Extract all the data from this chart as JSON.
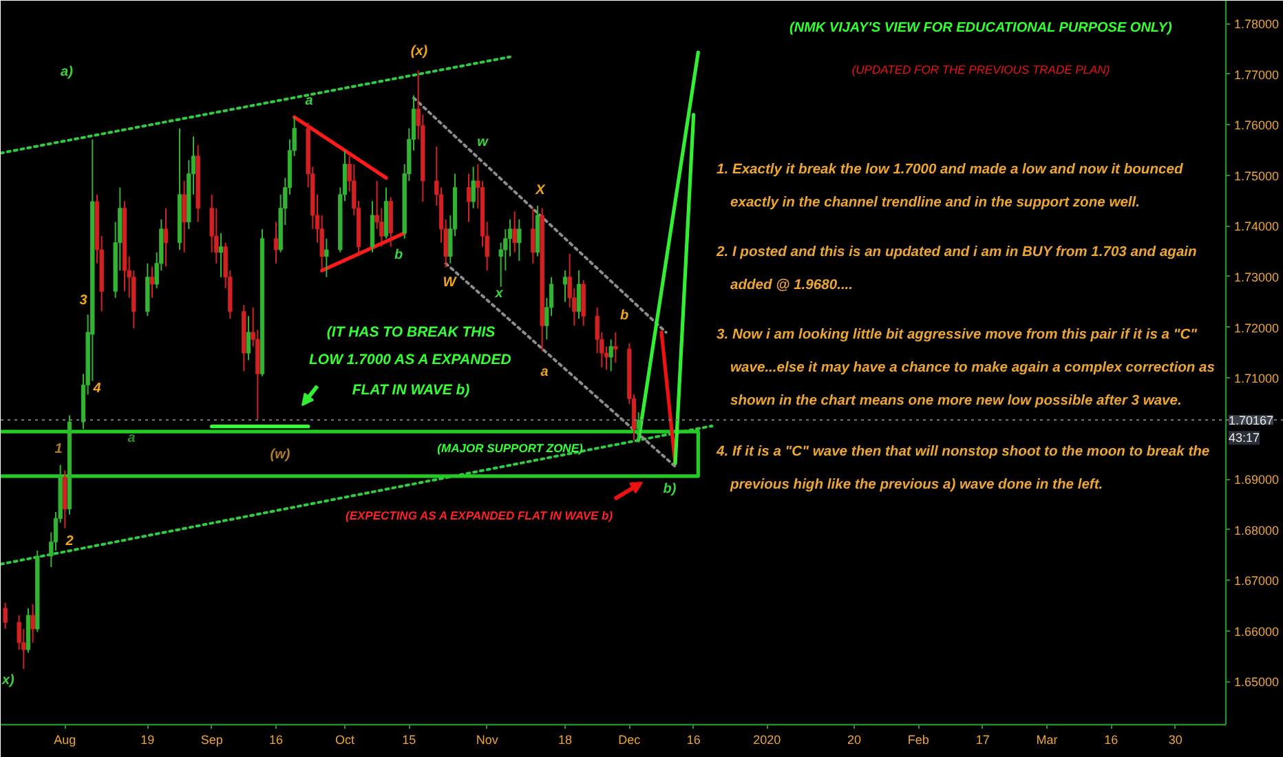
{
  "chart_data": {
    "type": "candlestick",
    "title": "(NMK VIJAY'S VIEW FOR EDUCATIONAL PURPOSE ONLY)",
    "subtitle": "(UPDATED FOR THE PREVIOUS TRADE PLAN)",
    "xlim": [
      "2019-07-18",
      "2020-04-10"
    ],
    "ylim": [
      1.6415,
      1.7845
    ],
    "xticks": [
      {
        "value": "2019-08-01",
        "label": "Aug"
      },
      {
        "value": "2019-08-19",
        "label": "19"
      },
      {
        "value": "2019-09-02",
        "label": "Sep"
      },
      {
        "value": "2019-09-16",
        "label": "16"
      },
      {
        "value": "2019-10-01",
        "label": "Oct"
      },
      {
        "value": "2019-10-15",
        "label": "15"
      },
      {
        "value": "2019-11-01",
        "label": "Nov"
      },
      {
        "value": "2019-11-18",
        "label": "18"
      },
      {
        "value": "2019-12-02",
        "label": "Dec"
      },
      {
        "value": "2019-12-16",
        "label": "16"
      },
      {
        "value": "2020-01-01",
        "label": "2020"
      },
      {
        "value": "2020-01-20",
        "label": "20"
      },
      {
        "value": "2020-02-03",
        "label": "Feb"
      },
      {
        "value": "2020-02-17",
        "label": "17"
      },
      {
        "value": "2020-03-02",
        "label": "Mar"
      },
      {
        "value": "2020-03-16",
        "label": "16"
      },
      {
        "value": "2020-03-30",
        "label": "30"
      }
    ],
    "yticks": [
      {
        "value": 1.65,
        "label": "1.65000"
      },
      {
        "value": 1.66,
        "label": "1.66000"
      },
      {
        "value": 1.67,
        "label": "1.67000"
      },
      {
        "value": 1.68,
        "label": "1.68000"
      },
      {
        "value": 1.69,
        "label": "1.69000"
      },
      {
        "value": 1.71,
        "label": "1.71000"
      },
      {
        "value": 1.72,
        "label": "1.72000"
      },
      {
        "value": 1.73,
        "label": "1.73000"
      },
      {
        "value": 1.74,
        "label": "1.74000"
      },
      {
        "value": 1.75,
        "label": "1.75000"
      },
      {
        "value": 1.76,
        "label": "1.76000"
      },
      {
        "value": 1.77,
        "label": "1.77000"
      },
      {
        "value": 1.78,
        "label": "1.78000"
      }
    ],
    "x": [
      "2019-07-19",
      "2019-07-22",
      "2019-07-23",
      "2019-07-24",
      "2019-07-25",
      "2019-07-26",
      "2019-07-29",
      "2019-07-30",
      "2019-07-31",
      "2019-08-01",
      "2019-08-02",
      "2019-08-05",
      "2019-08-06",
      "2019-08-07",
      "2019-08-08",
      "2019-08-09",
      "2019-08-12",
      "2019-08-13",
      "2019-08-14",
      "2019-08-15",
      "2019-08-16",
      "2019-08-19",
      "2019-08-20",
      "2019-08-21",
      "2019-08-22",
      "2019-08-23",
      "2019-08-26",
      "2019-08-27",
      "2019-08-28",
      "2019-08-29",
      "2019-08-30",
      "2019-09-02",
      "2019-09-03",
      "2019-09-04",
      "2019-09-05",
      "2019-09-06",
      "2019-09-09",
      "2019-09-10",
      "2019-09-11",
      "2019-09-12",
      "2019-09-13",
      "2019-09-16",
      "2019-09-17",
      "2019-09-18",
      "2019-09-19",
      "2019-09-20",
      "2019-09-23",
      "2019-09-24",
      "2019-09-25",
      "2019-09-26",
      "2019-09-27",
      "2019-09-30",
      "2019-10-01",
      "2019-10-02",
      "2019-10-03",
      "2019-10-04",
      "2019-10-07",
      "2019-10-08",
      "2019-10-09",
      "2019-10-10",
      "2019-10-11",
      "2019-10-14",
      "2019-10-15",
      "2019-10-16",
      "2019-10-17",
      "2019-10-18",
      "2019-10-21",
      "2019-10-22",
      "2019-10-23",
      "2019-10-24",
      "2019-10-25",
      "2019-10-28",
      "2019-10-29",
      "2019-10-30",
      "2019-10-31",
      "2019-11-01",
      "2019-11-04",
      "2019-11-05",
      "2019-11-06",
      "2019-11-07",
      "2019-11-08",
      "2019-11-11",
      "2019-11-12",
      "2019-11-13",
      "2019-11-14",
      "2019-11-15",
      "2019-11-18",
      "2019-11-19",
      "2019-11-20",
      "2019-11-21",
      "2019-11-22",
      "2019-11-25",
      "2019-11-26",
      "2019-11-27",
      "2019-11-28",
      "2019-11-29",
      "2019-12-02",
      "2019-12-03",
      "2019-12-04"
    ],
    "ohlc": [
      [
        1.6645,
        1.6656,
        1.6604,
        1.6617
      ],
      [
        1.6617,
        1.6631,
        1.6563,
        1.6577
      ],
      [
        1.6577,
        1.6604,
        1.6525,
        1.6563
      ],
      [
        1.6563,
        1.6645,
        1.6557,
        1.6631
      ],
      [
        1.6631,
        1.6653,
        1.6577,
        1.6604
      ],
      [
        1.6604,
        1.6759,
        1.6598,
        1.6748
      ],
      [
        1.6748,
        1.6795,
        1.6726,
        1.6776
      ],
      [
        1.6776,
        1.6835,
        1.6759,
        1.6822
      ],
      [
        1.6822,
        1.6928,
        1.6814,
        1.6904
      ],
      [
        1.6904,
        1.6917,
        1.6803,
        1.6841
      ],
      [
        1.6841,
        1.7026,
        1.683,
        1.7013
      ],
      [
        1.7013,
        1.7108,
        1.6999,
        1.7086
      ],
      [
        1.7086,
        1.7225,
        1.7067,
        1.719
      ],
      [
        1.7186,
        1.7571,
        1.7094,
        1.7448
      ],
      [
        1.7448,
        1.7462,
        1.7326,
        1.7353
      ],
      [
        1.7353,
        1.738,
        1.7231,
        1.7271
      ],
      [
        1.7271,
        1.7408,
        1.7258,
        1.7367
      ],
      [
        1.7367,
        1.7476,
        1.7312,
        1.7435
      ],
      [
        1.7435,
        1.7449,
        1.7271,
        1.7312
      ],
      [
        1.7312,
        1.734,
        1.7258,
        1.7299
      ],
      [
        1.7299,
        1.7312,
        1.7198,
        1.7231
      ],
      [
        1.7231,
        1.7326,
        1.7222,
        1.7299
      ],
      [
        1.7299,
        1.732,
        1.7258,
        1.7285
      ],
      [
        1.7285,
        1.7348,
        1.7277,
        1.7326
      ],
      [
        1.7326,
        1.7413,
        1.7312,
        1.7394
      ],
      [
        1.7394,
        1.7435,
        1.732,
        1.7367
      ],
      [
        1.7367,
        1.7593,
        1.7353,
        1.7462
      ],
      [
        1.7462,
        1.7489,
        1.7348,
        1.7408
      ],
      [
        1.7408,
        1.753,
        1.7394,
        1.7503
      ],
      [
        1.7503,
        1.7577,
        1.7462,
        1.7538
      ],
      [
        1.7538,
        1.756,
        1.7408,
        1.7435
      ],
      [
        1.7435,
        1.7462,
        1.7348,
        1.738
      ],
      [
        1.738,
        1.7435,
        1.7326,
        1.7348
      ],
      [
        1.7348,
        1.7386,
        1.7299,
        1.7359
      ],
      [
        1.7359,
        1.7367,
        1.7277,
        1.7299
      ],
      [
        1.7299,
        1.7312,
        1.7217,
        1.7231
      ],
      [
        1.7231,
        1.7244,
        1.7113,
        1.7149
      ],
      [
        1.7149,
        1.7222,
        1.7135,
        1.719
      ],
      [
        1.719,
        1.7239,
        1.7162,
        1.7176
      ],
      [
        1.7176,
        1.7195,
        1.7018,
        1.7108
      ],
      [
        1.7108,
        1.7394,
        1.7103,
        1.7375
      ],
      [
        1.7375,
        1.7408,
        1.7326,
        1.7353
      ],
      [
        1.7353,
        1.7462,
        1.7348,
        1.7435
      ],
      [
        1.7435,
        1.7495,
        1.7402,
        1.7476
      ],
      [
        1.7476,
        1.7571,
        1.7462,
        1.7549
      ],
      [
        1.7549,
        1.7615,
        1.7538,
        1.7593
      ],
      [
        1.7593,
        1.7604,
        1.7476,
        1.7503
      ],
      [
        1.7503,
        1.7517,
        1.7394,
        1.7421
      ],
      [
        1.7421,
        1.7462,
        1.7367,
        1.7394
      ],
      [
        1.7394,
        1.7421,
        1.7312,
        1.734
      ],
      [
        1.734,
        1.7375,
        1.7299,
        1.7353
      ],
      [
        1.7353,
        1.7476,
        1.7348,
        1.7462
      ],
      [
        1.7462,
        1.7549,
        1.7449,
        1.7522
      ],
      [
        1.7522,
        1.7538,
        1.7468,
        1.7489
      ],
      [
        1.7489,
        1.7522,
        1.7421,
        1.7435
      ],
      [
        1.7435,
        1.7449,
        1.734,
        1.7359
      ],
      [
        1.7359,
        1.7449,
        1.7348,
        1.7421
      ],
      [
        1.7421,
        1.7489,
        1.7394,
        1.7408
      ],
      [
        1.7408,
        1.7435,
        1.7359,
        1.738
      ],
      [
        1.738,
        1.7476,
        1.7375,
        1.7449
      ],
      [
        1.7449,
        1.7457,
        1.7359,
        1.7386
      ],
      [
        1.7386,
        1.7522,
        1.7375,
        1.7503
      ],
      [
        1.7503,
        1.7593,
        1.7489,
        1.7571
      ],
      [
        1.7571,
        1.7658,
        1.7549,
        1.7631
      ],
      [
        1.7631,
        1.7707,
        1.7571,
        1.7598
      ],
      [
        1.7598,
        1.762,
        1.7448,
        1.7489
      ],
      [
        1.7489,
        1.7557,
        1.744,
        1.7462
      ],
      [
        1.7462,
        1.7476,
        1.7367,
        1.7394
      ],
      [
        1.7394,
        1.7413,
        1.7318,
        1.734
      ],
      [
        1.734,
        1.7421,
        1.7326,
        1.7394
      ],
      [
        1.7394,
        1.7503,
        1.738,
        1.7476
      ],
      [
        1.7476,
        1.7503,
        1.7408,
        1.7448
      ],
      [
        1.7448,
        1.7517,
        1.7435,
        1.7489
      ],
      [
        1.7489,
        1.7522,
        1.7435,
        1.7476
      ],
      [
        1.7476,
        1.7489,
        1.7359,
        1.738
      ],
      [
        1.738,
        1.7408,
        1.7312,
        1.734
      ],
      [
        1.734,
        1.7367,
        1.728,
        1.7353
      ],
      [
        1.7353,
        1.7394,
        1.7312,
        1.7375
      ],
      [
        1.7375,
        1.7413,
        1.734,
        1.7394
      ],
      [
        1.7394,
        1.7429,
        1.7348,
        1.7367
      ],
      [
        1.7367,
        1.7413,
        1.7331,
        1.7394
      ],
      [
        1.7394,
        1.7435,
        1.7326,
        1.7348
      ],
      [
        1.7348,
        1.744,
        1.734,
        1.7421
      ],
      [
        1.7421,
        1.7435,
        1.7154,
        1.7203
      ],
      [
        1.7203,
        1.7258,
        1.7176,
        1.7239
      ],
      [
        1.7239,
        1.7299,
        1.7222,
        1.7285
      ],
      [
        1.7285,
        1.7312,
        1.725,
        1.7299
      ],
      [
        1.7299,
        1.7345,
        1.7239,
        1.7258
      ],
      [
        1.7258,
        1.7277,
        1.7203,
        1.7231
      ],
      [
        1.7231,
        1.7312,
        1.7217,
        1.7285
      ],
      [
        1.7285,
        1.7293,
        1.7203,
        1.7222
      ],
      [
        1.7222,
        1.7239,
        1.7149,
        1.7176
      ],
      [
        1.7176,
        1.719,
        1.7121,
        1.7149
      ],
      [
        1.7149,
        1.7162,
        1.7116,
        1.7141
      ],
      [
        1.7141,
        1.7176,
        1.7113,
        1.7162
      ],
      [
        1.7162,
        1.719,
        1.713,
        1.7157
      ],
      [
        1.7157,
        1.7168,
        1.7048,
        1.7059
      ],
      [
        1.7059,
        1.7067,
        1.6977,
        1.6999
      ],
      [
        1.6999,
        1.7032,
        1.6972,
        1.70167
      ]
    ],
    "colors": [
      "#d32020",
      "#d32020",
      "#d32020",
      "#33b233",
      "#d32020",
      "#33b233",
      "#33b233",
      "#33b233",
      "#33b233",
      "#d32020",
      "#33b233",
      "#33b233",
      "#33b233",
      "#33b233",
      "#d32020",
      "#d32020",
      "#33b233",
      "#33b233",
      "#d32020",
      "#d32020",
      "#d32020",
      "#33b233",
      "#d32020",
      "#33b233",
      "#33b233",
      "#d32020",
      "#33b233",
      "#d32020",
      "#33b233",
      "#33b233",
      "#d32020",
      "#d32020",
      "#d32020",
      "#33b233",
      "#d32020",
      "#d32020",
      "#d32020",
      "#33b233",
      "#d32020",
      "#d32020",
      "#33b233",
      "#d32020",
      "#33b233",
      "#33b233",
      "#33b233",
      "#33b233",
      "#d32020",
      "#d32020",
      "#d32020",
      "#d32020",
      "#33b233",
      "#33b233",
      "#33b233",
      "#d32020",
      "#d32020",
      "#d32020",
      "#33b233",
      "#d32020",
      "#d32020",
      "#33b233",
      "#d32020",
      "#33b233",
      "#33b233",
      "#33b233",
      "#d32020",
      "#d32020",
      "#d32020",
      "#d32020",
      "#d32020",
      "#33b233",
      "#33b233",
      "#d32020",
      "#33b233",
      "#d32020",
      "#d32020",
      "#d32020",
      "#33b233",
      "#33b233",
      "#33b233",
      "#d32020",
      "#33b233",
      "#d32020",
      "#33b233",
      "#d32020",
      "#33b233",
      "#33b233",
      "#33b233",
      "#d32020",
      "#d32020",
      "#33b233",
      "#d32020",
      "#d32020",
      "#d32020",
      "#d32020",
      "#33b233",
      "#d32020",
      "#d32020",
      "#d32020",
      "#33b233"
    ],
    "series": [
      {
        "type": "line",
        "color": "#2ecc40",
        "line_style": "dotted",
        "x": [
          "2019-07-18",
          "2019-11-06"
        ],
        "values": [
          1.7544,
          1.7734
        ]
      },
      {
        "type": "line",
        "color": "#2ecc40",
        "line_style": "dotted",
        "x": [
          "2019-07-18",
          "2019-12-20"
        ],
        "values": [
          1.6732,
          1.7005
        ]
      },
      {
        "type": "line",
        "color": "#8c8c8c",
        "line_style": "dotted",
        "x": [
          "2019-10-16",
          "2019-12-10"
        ],
        "values": [
          1.7653,
          1.719
        ]
      },
      {
        "type": "line",
        "color": "#8c8c8c",
        "line_style": "dotted",
        "x": [
          "2019-10-23",
          "2019-12-12"
        ],
        "values": [
          1.7326,
          1.6925
        ]
      },
      {
        "type": "line",
        "color": "#ff1a1a",
        "line_style": "solid",
        "x": [
          "2019-09-20",
          "2019-10-10"
        ],
        "values": [
          1.7615,
          1.7495
        ]
      },
      {
        "type": "line",
        "color": "#ff1a1a",
        "line_style": "solid",
        "x": [
          "2019-09-26",
          "2019-10-14"
        ],
        "values": [
          1.7312,
          1.7386
        ]
      },
      {
        "type": "line",
        "color": "#33ff33",
        "line_style": "solid",
        "x": [
          "2019-09-02",
          "2019-09-23"
        ],
        "values": [
          1.7004,
          1.7004
        ]
      },
      {
        "type": "line",
        "color": "#22cc22",
        "line_style": "solid",
        "x": [
          "2019-07-18",
          "2019-12-17",
          "2019-12-17",
          "2019-07-18"
        ],
        "values": [
          1.6994,
          1.6994,
          1.6906,
          1.6906
        ]
      },
      {
        "type": "line",
        "color": "#33ee33",
        "line_style": "solid",
        "x": [
          "2019-12-04",
          "2019-12-17"
        ],
        "values": [
          1.6977,
          1.7743
        ]
      },
      {
        "type": "line",
        "color": "#ee1111",
        "line_style": "solid",
        "x": [
          "2019-12-09",
          "2019-12-12"
        ],
        "values": [
          1.719,
          1.6931
        ]
      },
      {
        "type": "line",
        "color": "#33ee33",
        "line_style": "solid",
        "x": [
          "2019-12-12",
          "2019-12-16"
        ],
        "values": [
          1.6931,
          1.762
        ]
      }
    ],
    "ref_lines": [
      {
        "axis": "y",
        "value": 1.70167,
        "label": "1.70167",
        "color": "#787b86",
        "line_style": "dotted"
      }
    ],
    "annotations": [
      "a)",
      "3",
      "4",
      "1",
      "2",
      "a",
      "(w)",
      "a",
      "(x)",
      "b",
      "w",
      "X",
      "W",
      "x",
      "a",
      "b",
      "b)",
      "x)",
      "(IT HAS TO BREAK THIS",
      "LOW 1.7000 AS A EXPANDED",
      "FLAT IN WAVE b)",
      "(MAJOR SUPPORT ZONE)",
      "(EXPECTING AS A EXPANDED FLAT IN WAVE b)",
      "1. Exactly it break the low 1.7000 and made a low and now it bounced\nexactly in the channel trendline and in the support zone well.",
      "2. I posted and this is an updated and i am in BUY from 1.703 and again\nadded @ 1.9680....",
      "3. Now i am looking little bit aggressive move from this pair if it is a \"C\"\nwave...else it may have a chance to make again a complex correction as\nshown in the chart means one more new low possible after 3 wave.",
      "4. If it is a \"C\" wave then that will nonstop shoot to the moon to break the\nprevious high like the previous a) wave done in the left.",
      "43:17"
    ]
  }
}
